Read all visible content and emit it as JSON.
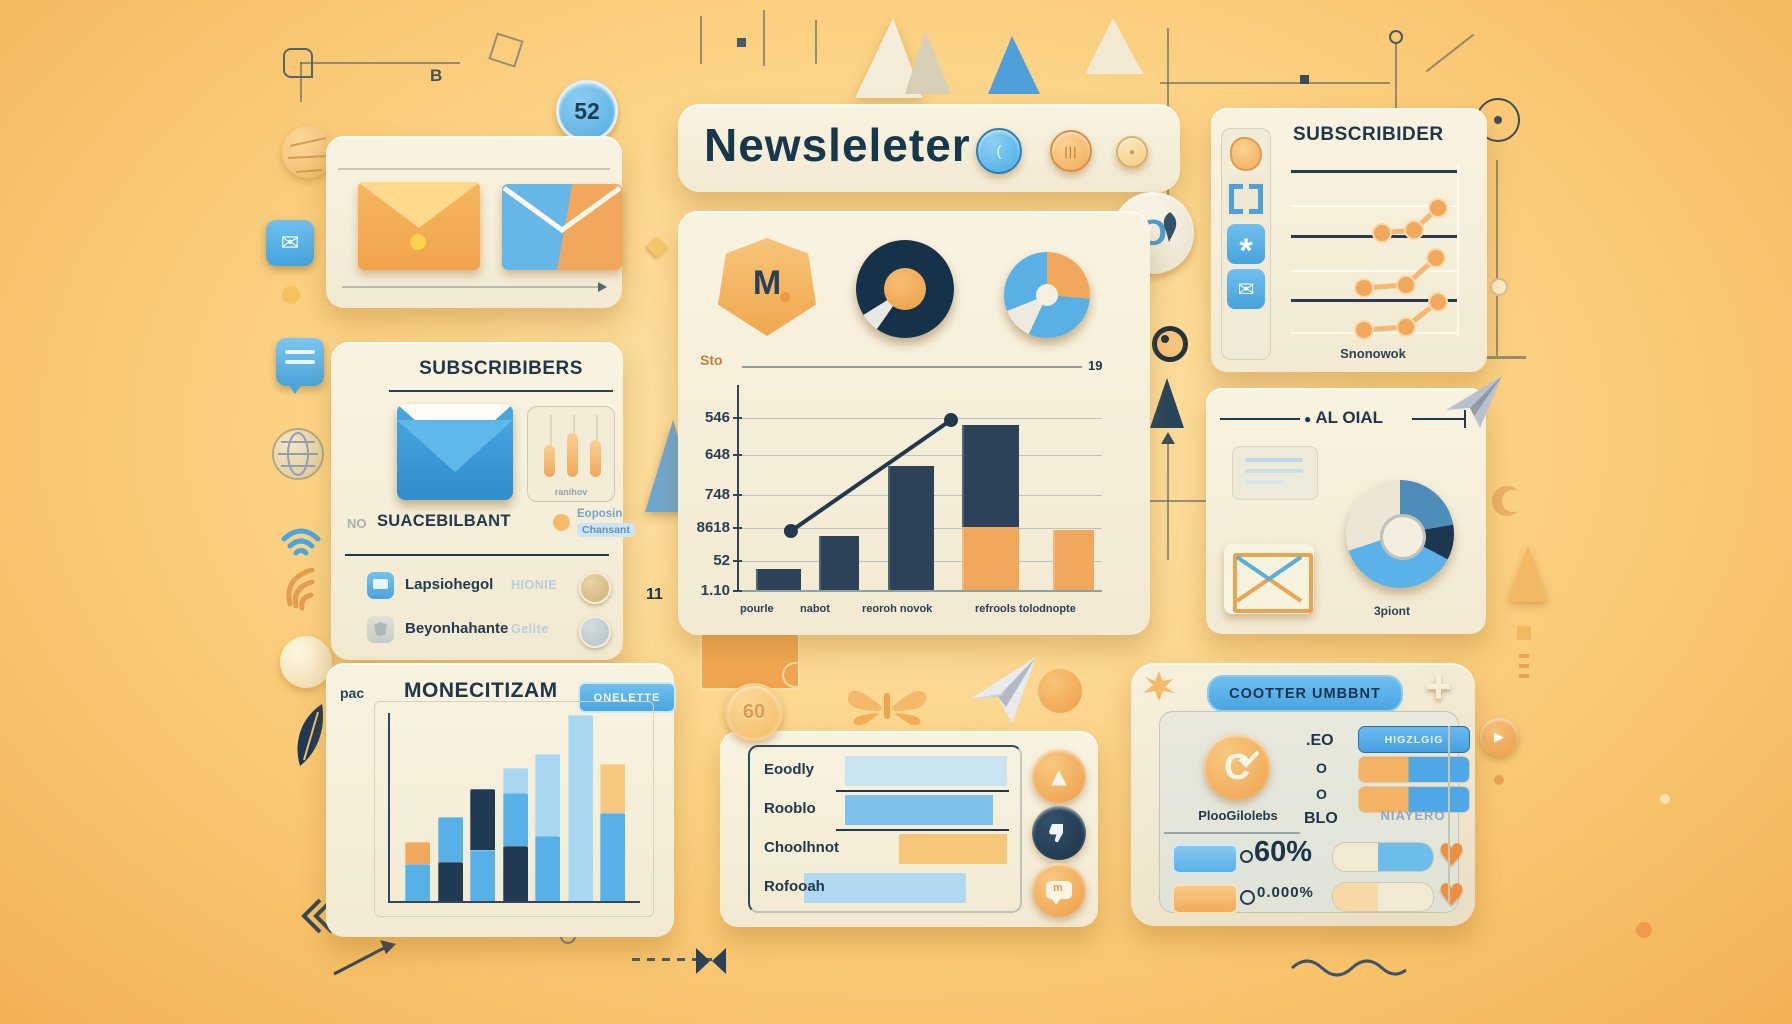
{
  "colors": {
    "navy": "#1e3448",
    "blue": "#58b1e6",
    "light_blue": "#a9d7f2",
    "pale_blue": "#c4e1f2",
    "orange": "#f2a85c",
    "light_orange": "#f8c880",
    "cream": "#f5efdb"
  },
  "header": {
    "title": "Newsleleter",
    "badge": "52"
  },
  "subscribers_left": {
    "title": "SUBSCRIBIBERS",
    "mini_caption": "ranihov",
    "row": {
      "prefix": "NO",
      "label": "SUACEBILBANT",
      "value1": "Eoposin",
      "value2": "Chansant"
    },
    "toggles": [
      {
        "label": "Lapsiohegol",
        "value": "HIONIE"
      },
      {
        "label": "Beyonhahante",
        "value": "Gelite"
      }
    ]
  },
  "main_panel": {
    "top_left_label": "Sto",
    "top_right_label": "19",
    "y_ticks": [
      "546",
      "648",
      "748",
      "8618",
      "52",
      "1.10"
    ],
    "x_labels": [
      "pourle",
      "nabot",
      "reoroh novok",
      "refrools tolodnopte"
    ]
  },
  "subscriber_right": {
    "title": "SUBSCRIBIDER",
    "caption": "Snonowok"
  },
  "al_oial": {
    "title": "AL OIAL",
    "caption": "3piont"
  },
  "monetization": {
    "doc_label": "pac",
    "title": "MONECITIZAM",
    "badge": "ONELETTE"
  },
  "list_panel": {
    "badge": "60",
    "items": [
      "Eoodly",
      "Rooblo",
      "Choolhnot",
      "Rofooah"
    ]
  },
  "counter": {
    "title": "COOTTER UMBBNT",
    "plus": "+",
    "logo_caption": "PlooGilolebs",
    "column_values": [
      ".EO",
      "O",
      "O",
      "BLO"
    ],
    "pill_label": "HIGZLGIG",
    "right_caption": "NIAYERO",
    "stat1": "60%",
    "stat2": "0.000%"
  },
  "decor_text": {
    "eleven": "11",
    "letter_b": "B"
  },
  "chart_data": [
    {
      "id": "main-growth-chart",
      "type": "bar",
      "title": "",
      "xlabel": "",
      "ylabel": "",
      "categories": [
        "pourle",
        "nabot",
        "reoroh novok",
        "refrools tolodnopte"
      ],
      "y_tick_labels": [
        "Sto",
        "546",
        "648",
        "748",
        "8618",
        "52",
        "1.10"
      ],
      "units": "percent-of-plot-height (labels garbled in source art)",
      "bars": [
        {
          "left_pct": 4.7,
          "width_pct": 12.4,
          "segments": [
            {
              "color": "#2b4258",
              "value": 10
            }
          ]
        },
        {
          "left_pct": 22.0,
          "width_pct": 11.0,
          "segments": [
            {
              "color": "#2b4258",
              "value": 26
            }
          ]
        },
        {
          "left_pct": 41.0,
          "width_pct": 12.7,
          "segments": [
            {
              "color": "#2b4258",
              "value": 60
            }
          ]
        },
        {
          "left_pct": 61.4,
          "width_pct": 15.7,
          "segments": [
            {
              "color": "#f2a85c",
              "value": 30.5
            },
            {
              "color": "#2b4258",
              "value": 49.5
            }
          ]
        },
        {
          "left_pct": 86.5,
          "width_pct": 11.3,
          "segments": [
            {
              "color": "#f2a85c",
              "value": 29
            }
          ]
        }
      ],
      "trend_line": {
        "color": "#22384e",
        "points_pct": [
          [
            14.3,
            70.9
          ],
          [
            58.4,
            17.0
          ]
        ]
      },
      "grid": true,
      "legend": false
    },
    {
      "id": "subscriber-sparkline",
      "type": "line",
      "color": "#f2a85c",
      "segments_pct": [
        [
          [
            54.3,
            39.5
          ],
          [
            72.6,
            37.9
          ],
          [
            86.3,
            26.3
          ]
        ],
        [
          [
            44.0,
            68.4
          ],
          [
            68.0,
            66.8
          ],
          [
            85.1,
            52.6
          ]
        ],
        [
          [
            44.0,
            90.5
          ],
          [
            68.0,
            88.9
          ],
          [
            86.3,
            75.8
          ]
        ]
      ]
    },
    {
      "id": "monetization-bars",
      "type": "stacked-bar",
      "units": "percent-of-plot-height (no axis labels in source art)",
      "bars": [
        {
          "left_pct": 6,
          "width_pct": 10,
          "segments": [
            {
              "color": "#58b1e6",
              "value": 19
            },
            {
              "color": "#f2a85c",
              "value": 11
            }
          ]
        },
        {
          "left_pct": 19,
          "width_pct": 10,
          "segments": [
            {
              "color": "#1f3a52",
              "value": 20
            },
            {
              "color": "#58b1e6",
              "value": 23
            }
          ]
        },
        {
          "left_pct": 32,
          "width_pct": 10,
          "segments": [
            {
              "color": "#58b1e6",
              "value": 26
            },
            {
              "color": "#1f3a52",
              "value": 31
            }
          ]
        },
        {
          "left_pct": 45,
          "width_pct": 10,
          "segments": [
            {
              "color": "#1f3a52",
              "value": 28
            },
            {
              "color": "#58b1e6",
              "value": 27
            },
            {
              "color": "#a9d7f2",
              "value": 13
            }
          ]
        },
        {
          "left_pct": 58,
          "width_pct": 10,
          "segments": [
            {
              "color": "#58b1e6",
              "value": 33
            },
            {
              "color": "#a9d7f2",
              "value": 42
            }
          ]
        },
        {
          "left_pct": 71,
          "width_pct": 10,
          "segments": [
            {
              "color": "#a9d7f2",
              "value": 95
            }
          ]
        },
        {
          "left_pct": 84,
          "width_pct": 10,
          "segments": [
            {
              "color": "#58b1e6",
              "value": 45
            },
            {
              "color": "#f8c880",
              "value": 25
            }
          ]
        }
      ]
    },
    {
      "id": "list-progress",
      "type": "table",
      "rows": [
        {
          "label": "Eoodly",
          "bar": {
            "left_pct": 35,
            "width_pct": 60,
            "color": "#c4e1f2"
          },
          "underline": true
        },
        {
          "label": "Rooblo",
          "bar": {
            "left_pct": 35,
            "width_pct": 55,
            "color": "#6fbcec"
          },
          "underline": true
        },
        {
          "label": "Choolhnot",
          "bar": {
            "left_pct": 55,
            "width_pct": 40,
            "color": "#f5c06e"
          },
          "underline": false
        },
        {
          "label": "Rofooah",
          "bar": {
            "left_pct": 20,
            "width_pct": 60,
            "color": "#a9d7f2"
          },
          "underline": false
        }
      ]
    },
    {
      "id": "counter-pills",
      "type": "table",
      "pills": [
        {
          "style": "solid_blue"
        },
        {
          "style": "split",
          "orange_pct": 45
        },
        {
          "style": "split",
          "orange_pct": 45
        }
      ],
      "progress": [
        {
          "fill": "#6cbcec",
          "from_pct": 45,
          "to_pct": 100
        },
        {
          "fill": "#f7d9a8",
          "from_pct": 0,
          "to_pct": 45
        }
      ]
    }
  ]
}
